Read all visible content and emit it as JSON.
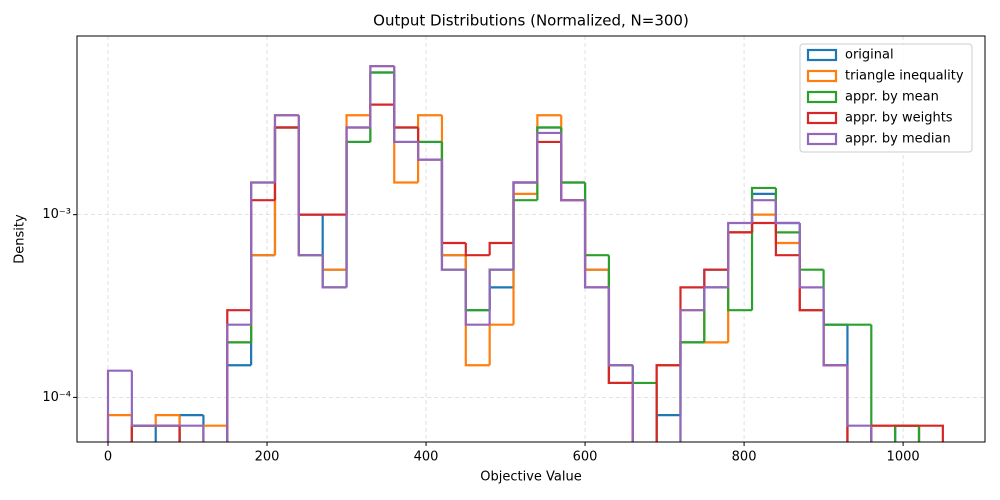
{
  "chart_data": {
    "type": "histogram",
    "title": "Output Distributions (Normalized, N=300)",
    "x_label": "Objective Value",
    "y_label": "Density",
    "xlim": [
      -39,
      1103
    ],
    "xticks": [
      0,
      200,
      400,
      600,
      800,
      1000
    ],
    "ylim": [
      5.7e-05,
      0.0095
    ],
    "yticks": [
      {
        "value": 0.0001,
        "label": "10⁻⁴"
      },
      {
        "value": 0.001,
        "label": "10⁻³"
      }
    ],
    "log_y": true,
    "grid": true,
    "legend": "upper right",
    "bins": [
      0,
      30,
      60,
      90,
      120,
      150,
      180,
      210,
      240,
      270,
      300,
      330,
      360,
      390,
      420,
      450,
      480,
      510,
      540,
      570,
      600,
      630,
      660,
      690,
      720,
      750,
      780,
      810,
      840,
      870,
      900,
      930,
      960,
      990,
      1020,
      1050
    ],
    "series": [
      {
        "name": "original",
        "color": "#1f77b4",
        "values": [
          0,
          7e-05,
          0,
          8e-05,
          0,
          0.00015,
          0.0006,
          0.003,
          0.001,
          0.0005,
          0.0025,
          0.006,
          0.0025,
          0.0025,
          0.0006,
          0.0003,
          0.0004,
          0.0015,
          0.003,
          0.0015,
          0.0005,
          0.00012,
          0,
          8e-05,
          0.0002,
          0.0005,
          0.0008,
          0.0013,
          0.0009,
          0.0003,
          0.00025,
          0,
          0,
          7e-05,
          0
        ]
      },
      {
        "name": "triangle inequality",
        "color": "#ff7f0e",
        "values": [
          8e-05,
          7e-05,
          8e-05,
          0,
          7e-05,
          0.0002,
          0.0006,
          0.0035,
          0.0006,
          0.0005,
          0.0035,
          0.0065,
          0.0015,
          0.0035,
          0.0006,
          0.00015,
          0.00025,
          0.0013,
          0.0035,
          0.0012,
          0.0005,
          0.00012,
          0,
          0.00015,
          0.0003,
          0.0002,
          0.0008,
          0.001,
          0.0007,
          0.0003,
          0.00015,
          0,
          7e-05,
          7e-05,
          0
        ]
      },
      {
        "name": "appr. by mean",
        "color": "#2ca02c",
        "values": [
          0,
          7e-05,
          7e-05,
          0,
          0,
          0.0002,
          0.0015,
          0.003,
          0.0006,
          0.0004,
          0.0025,
          0.006,
          0.003,
          0.0025,
          0.0005,
          0.0003,
          0.0005,
          0.0012,
          0.003,
          0.0015,
          0.0006,
          0.00015,
          0.00012,
          0,
          0.0002,
          0.0004,
          0.0003,
          0.0014,
          0.0008,
          0.0005,
          0.00025,
          0.00025,
          0,
          7e-05,
          0
        ]
      },
      {
        "name": "appr. by weights",
        "color": "#d62728",
        "values": [
          0,
          7e-05,
          7e-05,
          0,
          0,
          0.0003,
          0.0012,
          0.003,
          0.001,
          0.001,
          0.003,
          0.004,
          0.003,
          0.002,
          0.0007,
          0.0006,
          0.0007,
          0.0015,
          0.0025,
          0.0012,
          0.0004,
          0.00012,
          0,
          0.00015,
          0.0004,
          0.0005,
          0.0008,
          0.0009,
          0.0006,
          0.0003,
          0.00015,
          0,
          7e-05,
          7e-05,
          7e-05
        ]
      },
      {
        "name": "appr. by median",
        "color": "#9467bd",
        "values": [
          0.00014,
          7e-05,
          7e-05,
          7e-05,
          0,
          0.00025,
          0.0015,
          0.0035,
          0.0006,
          0.0004,
          0.003,
          0.0065,
          0.0025,
          0.002,
          0.0005,
          0.00025,
          0.0005,
          0.0015,
          0.0028,
          0.0012,
          0.0004,
          0.00015,
          0,
          0,
          0.0003,
          0.0004,
          0.0009,
          0.0012,
          0.0009,
          0.0004,
          0.00015,
          7e-05,
          0,
          0,
          0
        ]
      }
    ]
  }
}
